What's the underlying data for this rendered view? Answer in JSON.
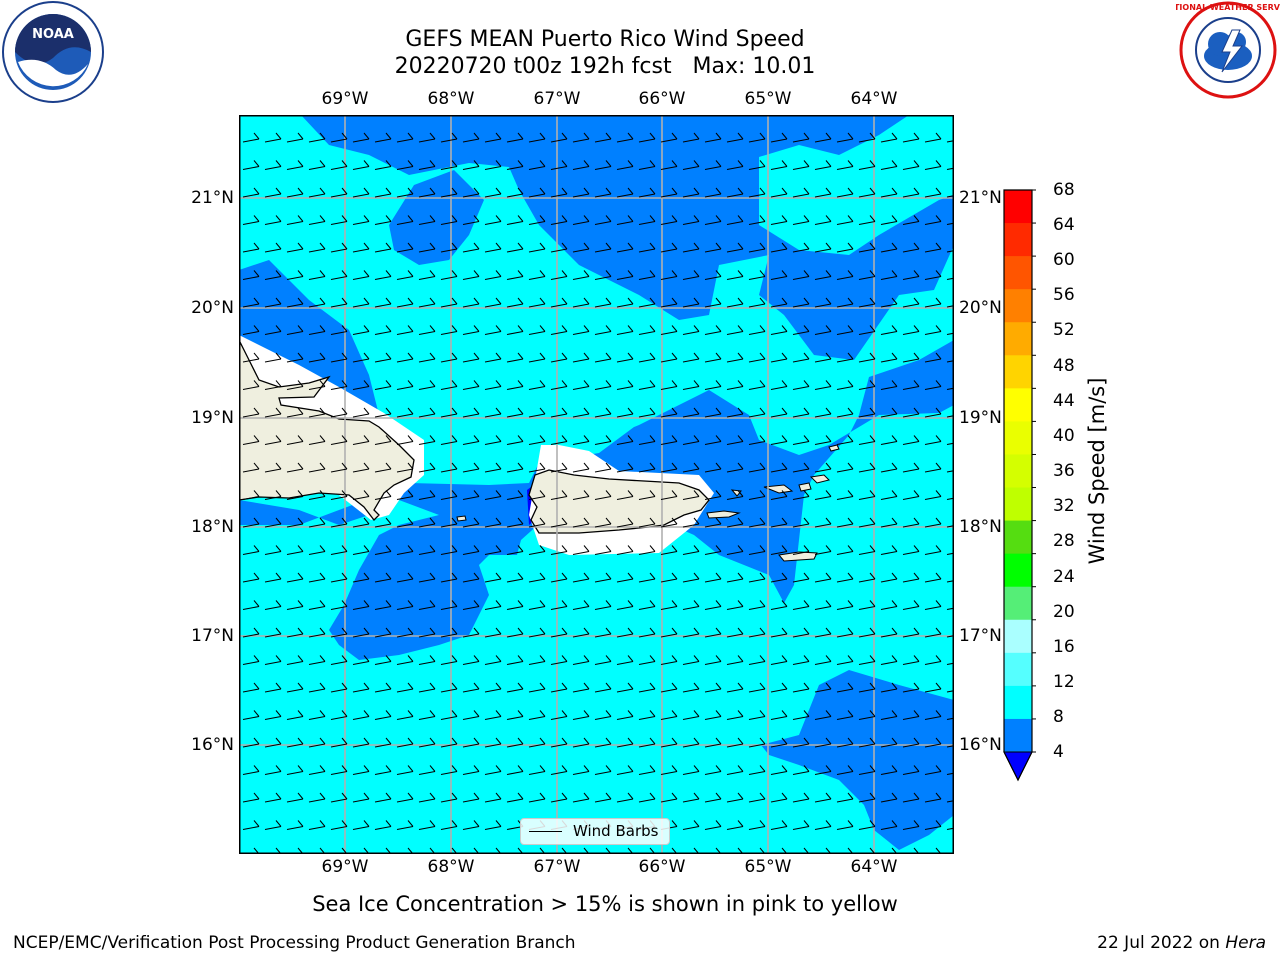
{
  "title": {
    "line1": "GEFS MEAN Puerto Rico Wind Speed",
    "line2": "20220720 t00z 192h fcst   Max: 10.01"
  },
  "logos": {
    "left": "noaa-logo",
    "left_text": "NOAA",
    "right": "nws-logo",
    "right_text": "NATIONAL WEATHER SERVICE"
  },
  "axes": {
    "longitude_ticks": [
      "69°W",
      "68°W",
      "67°W",
      "66°W",
      "65°W",
      "64°W"
    ],
    "latitude_ticks": [
      "21°N",
      "20°N",
      "19°N",
      "18°N",
      "17°N",
      "16°N"
    ],
    "gridlines": true
  },
  "legend": {
    "label": "Wind Barbs",
    "placement": "lower-center"
  },
  "colorbar": {
    "label": "Wind Speed [m/s]",
    "ticks": [
      "68",
      "64",
      "60",
      "56",
      "52",
      "48",
      "44",
      "40",
      "36",
      "32",
      "28",
      "24",
      "20",
      "16",
      "12",
      "8",
      "4"
    ],
    "colors": [
      "#ff0000",
      "#ff2a00",
      "#ff5500",
      "#ff8000",
      "#ffab00",
      "#ffd400",
      "#ffff00",
      "#eaff00",
      "#d4ff00",
      "#bfff00",
      "#55dd11",
      "#00ff00",
      "#55ee77",
      "#aaffff",
      "#55ffff",
      "#00ffff",
      "#0080ff"
    ],
    "under_color": "#0000ff"
  },
  "map": {
    "ocean_low_color": "#0080ff",
    "ocean_mid_color": "#00ffff",
    "land_color": "#efefdf"
  },
  "caption": "Sea Ice Concentration > 15% is shown in pink to yellow",
  "footer": {
    "left": "NCEP/EMC/Verification Post Processing Product Generation Branch",
    "right_date": "22 Jul 2022 on ",
    "right_machine": "Hera"
  }
}
